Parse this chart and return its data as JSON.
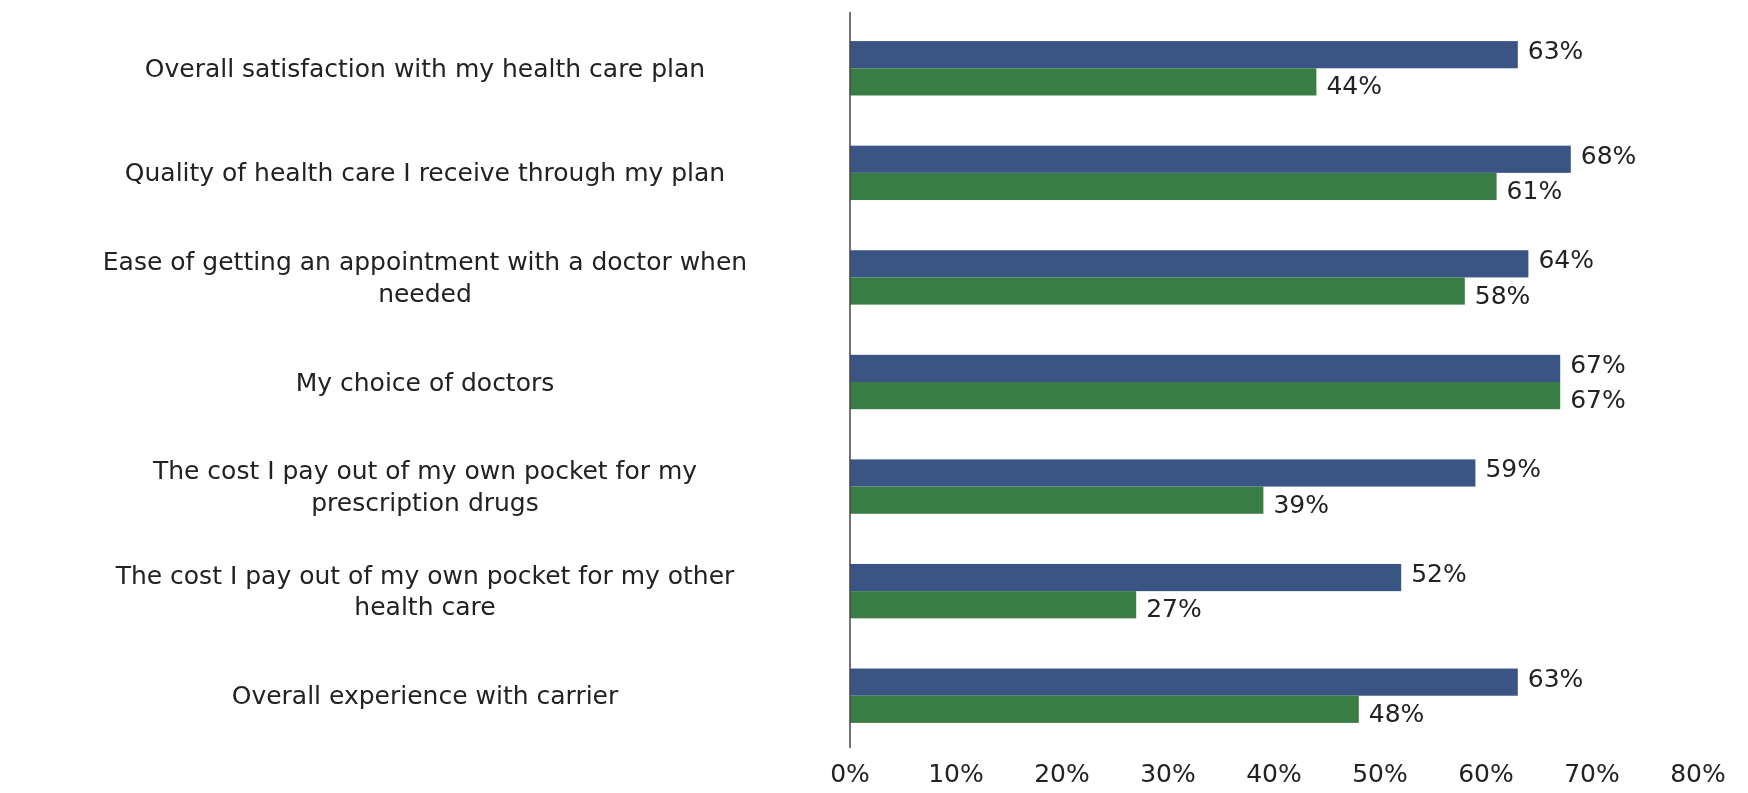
{
  "chart_data": {
    "type": "bar",
    "orientation": "horizontal",
    "categories": [
      "Overall satisfaction with my health care plan",
      "Quality of health care I receive through my plan",
      "Ease of getting an appointment with a doctor when needed",
      "My choice of doctors",
      "The cost I pay out of my own pocket for my prescription drugs",
      "The cost I pay out of my own pocket for my other health care",
      "Overall experience with carrier"
    ],
    "series": [
      {
        "color": "#3a5583",
        "values": [
          63,
          68,
          64,
          67,
          59,
          52,
          63
        ],
        "value_labels": [
          "63%",
          "68%",
          "64%",
          "67%",
          "59%",
          "52%",
          "63%"
        ]
      },
      {
        "color": "#3a7d44",
        "values": [
          44,
          61,
          58,
          67,
          39,
          27,
          48
        ],
        "value_labels": [
          "44%",
          "61%",
          "58%",
          "67%",
          "39%",
          "27%",
          "48%"
        ]
      }
    ],
    "xlim": [
      0,
      80
    ],
    "xticks": [
      {
        "value": 0,
        "label": "0%"
      },
      {
        "value": 10,
        "label": "10%"
      },
      {
        "value": 20,
        "label": "20%"
      },
      {
        "value": 30,
        "label": "30%"
      },
      {
        "value": 40,
        "label": "40%"
      },
      {
        "value": 50,
        "label": "50%"
      },
      {
        "value": 60,
        "label": "60%"
      },
      {
        "value": 70,
        "label": "70%"
      },
      {
        "value": 80,
        "label": "80%"
      }
    ],
    "grid": false
  }
}
